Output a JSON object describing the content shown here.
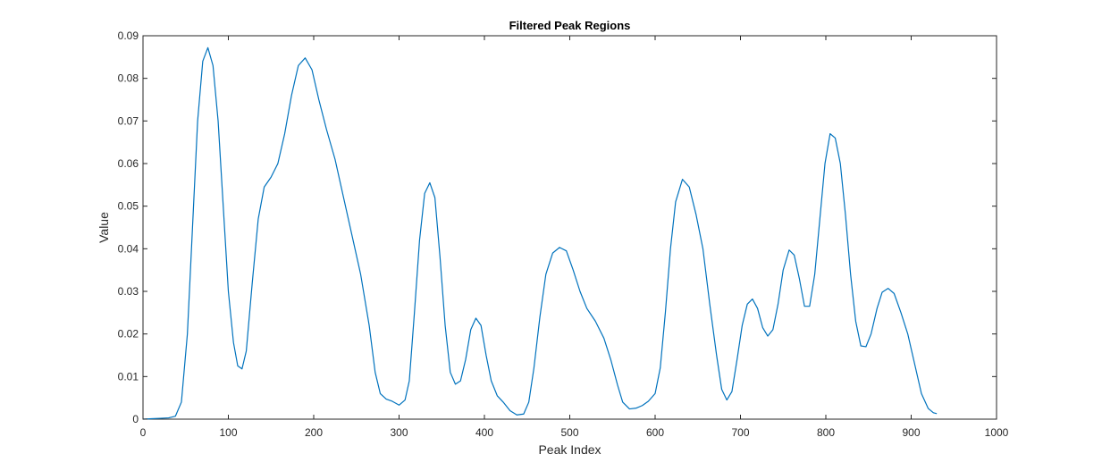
{
  "chart_data": {
    "type": "line",
    "title": "Filtered Peak Regions",
    "xlabel": "Peak Index",
    "ylabel": "Value",
    "xlim": [
      0,
      1000
    ],
    "ylim": [
      0,
      0.09
    ],
    "xticks": [
      0,
      100,
      200,
      300,
      400,
      500,
      600,
      700,
      800,
      900,
      1000
    ],
    "xtick_labels": [
      "0",
      "100",
      "200",
      "300",
      "400",
      "500",
      "600",
      "700",
      "800",
      "900",
      "1000"
    ],
    "yticks": [
      0,
      0.01,
      0.02,
      0.03,
      0.04,
      0.05,
      0.06,
      0.07,
      0.08,
      0.09
    ],
    "ytick_labels": [
      "0",
      "0.01",
      "0.02",
      "0.03",
      "0.04",
      "0.05",
      "0.06",
      "0.07",
      "0.08",
      "0.09"
    ],
    "grid": false,
    "series": [
      {
        "name": "Filtered Peak Regions",
        "color": "#0072BD",
        "points": [
          [
            0,
            0.0
          ],
          [
            10,
            0.0001
          ],
          [
            20,
            0.0002
          ],
          [
            30,
            0.0003
          ],
          [
            38,
            0.0007
          ],
          [
            45,
            0.004
          ],
          [
            52,
            0.02
          ],
          [
            58,
            0.045
          ],
          [
            64,
            0.07
          ],
          [
            70,
            0.084
          ],
          [
            76,
            0.0872
          ],
          [
            82,
            0.083
          ],
          [
            88,
            0.07
          ],
          [
            94,
            0.05
          ],
          [
            100,
            0.03
          ],
          [
            106,
            0.018
          ],
          [
            111,
            0.0125
          ],
          [
            116,
            0.0118
          ],
          [
            121,
            0.016
          ],
          [
            128,
            0.032
          ],
          [
            135,
            0.047
          ],
          [
            142,
            0.0545
          ],
          [
            150,
            0.0568
          ],
          [
            158,
            0.06
          ],
          [
            166,
            0.067
          ],
          [
            174,
            0.076
          ],
          [
            182,
            0.083
          ],
          [
            190,
            0.0848
          ],
          [
            198,
            0.082
          ],
          [
            206,
            0.075
          ],
          [
            215,
            0.068
          ],
          [
            225,
            0.061
          ],
          [
            235,
            0.052
          ],
          [
            245,
            0.043
          ],
          [
            255,
            0.034
          ],
          [
            265,
            0.022
          ],
          [
            272,
            0.011
          ],
          [
            278,
            0.006
          ],
          [
            285,
            0.0047
          ],
          [
            292,
            0.0042
          ],
          [
            300,
            0.0033
          ],
          [
            307,
            0.0045
          ],
          [
            312,
            0.009
          ],
          [
            318,
            0.025
          ],
          [
            324,
            0.042
          ],
          [
            330,
            0.053
          ],
          [
            336,
            0.0555
          ],
          [
            342,
            0.052
          ],
          [
            348,
            0.038
          ],
          [
            354,
            0.022
          ],
          [
            360,
            0.011
          ],
          [
            366,
            0.0082
          ],
          [
            372,
            0.009
          ],
          [
            378,
            0.014
          ],
          [
            384,
            0.021
          ],
          [
            390,
            0.0237
          ],
          [
            396,
            0.022
          ],
          [
            402,
            0.015
          ],
          [
            408,
            0.009
          ],
          [
            415,
            0.0055
          ],
          [
            422,
            0.004
          ],
          [
            430,
            0.002
          ],
          [
            438,
            0.001
          ],
          [
            446,
            0.0012
          ],
          [
            452,
            0.004
          ],
          [
            458,
            0.012
          ],
          [
            465,
            0.024
          ],
          [
            472,
            0.034
          ],
          [
            480,
            0.039
          ],
          [
            488,
            0.0403
          ],
          [
            496,
            0.0395
          ],
          [
            504,
            0.035
          ],
          [
            512,
            0.03
          ],
          [
            520,
            0.026
          ],
          [
            530,
            0.023
          ],
          [
            540,
            0.019
          ],
          [
            548,
            0.014
          ],
          [
            556,
            0.008
          ],
          [
            562,
            0.004
          ],
          [
            570,
            0.0024
          ],
          [
            578,
            0.0026
          ],
          [
            585,
            0.0032
          ],
          [
            592,
            0.0042
          ],
          [
            600,
            0.006
          ],
          [
            606,
            0.012
          ],
          [
            612,
            0.025
          ],
          [
            618,
            0.04
          ],
          [
            624,
            0.051
          ],
          [
            632,
            0.0563
          ],
          [
            640,
            0.0545
          ],
          [
            648,
            0.048
          ],
          [
            656,
            0.04
          ],
          [
            664,
            0.027
          ],
          [
            672,
            0.015
          ],
          [
            678,
            0.007
          ],
          [
            684,
            0.0045
          ],
          [
            690,
            0.0065
          ],
          [
            696,
            0.014
          ],
          [
            702,
            0.022
          ],
          [
            708,
            0.027
          ],
          [
            714,
            0.0282
          ],
          [
            720,
            0.026
          ],
          [
            726,
            0.0215
          ],
          [
            732,
            0.0195
          ],
          [
            738,
            0.021
          ],
          [
            744,
            0.027
          ],
          [
            750,
            0.035
          ],
          [
            757,
            0.0397
          ],
          [
            763,
            0.0385
          ],
          [
            769,
            0.033
          ],
          [
            775,
            0.0265
          ],
          [
            781,
            0.0265
          ],
          [
            787,
            0.034
          ],
          [
            793,
            0.047
          ],
          [
            799,
            0.06
          ],
          [
            805,
            0.067
          ],
          [
            811,
            0.066
          ],
          [
            817,
            0.06
          ],
          [
            823,
            0.048
          ],
          [
            829,
            0.034
          ],
          [
            835,
            0.023
          ],
          [
            841,
            0.0172
          ],
          [
            847,
            0.017
          ],
          [
            853,
            0.02
          ],
          [
            860,
            0.026
          ],
          [
            866,
            0.0298
          ],
          [
            873,
            0.0307
          ],
          [
            880,
            0.0295
          ],
          [
            888,
            0.025
          ],
          [
            896,
            0.02
          ],
          [
            904,
            0.013
          ],
          [
            912,
            0.006
          ],
          [
            920,
            0.0025
          ],
          [
            926,
            0.0015
          ],
          [
            930,
            0.0013
          ]
        ]
      }
    ]
  }
}
